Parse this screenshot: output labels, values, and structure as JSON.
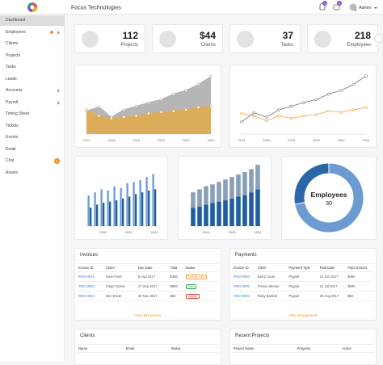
{
  "header": {
    "title": "Focus Technologies",
    "notifications": "3",
    "messages": "8",
    "user": "Admin"
  },
  "sidebar": {
    "items": [
      "Dashboard",
      "Employees",
      "Clients",
      "Projects",
      "Tasks",
      "Leads",
      "Accounts",
      "Payroll",
      "Timing Sheet",
      "Tickets",
      "Events",
      "Email",
      "Chat",
      "Assets"
    ],
    "chat_badge": "5"
  },
  "stats": [
    {
      "value": "112",
      "label": "Projects"
    },
    {
      "value": "$44",
      "label": "Clients"
    },
    {
      "value": "37",
      "label": "Tasks"
    },
    {
      "value": "218",
      "label": "Employees"
    }
  ],
  "chart_data": [
    {
      "type": "area",
      "x": [
        2014,
        2015,
        2016,
        2017,
        2018,
        2019,
        2020,
        2021,
        2022,
        2023,
        2024
      ],
      "xlim": [
        2014,
        2024
      ],
      "xticks": [
        2014,
        2016,
        2018,
        2020,
        2022,
        2024
      ],
      "ylim": [
        0,
        100
      ],
      "series": [
        {
          "color": "#a9a9a9",
          "values": [
            38,
            45,
            28,
            40,
            46,
            52,
            57,
            66,
            72,
            82,
            95
          ]
        },
        {
          "color": "#e2ac4a",
          "values": [
            40,
            30,
            26,
            28,
            30,
            34,
            36,
            38,
            40,
            44,
            46
          ]
        }
      ]
    },
    {
      "type": "line",
      "x": [
        2014,
        2015,
        2016,
        2017,
        2018,
        2019,
        2020,
        2021,
        2022,
        2023,
        2024
      ],
      "xlim": [
        2014,
        2024
      ],
      "xticks": [
        2014,
        2016,
        2018,
        2020,
        2022,
        2024
      ],
      "ylim": [
        0,
        100
      ],
      "series": [
        {
          "color": "#777777",
          "values": [
            20,
            35,
            28,
            40,
            46,
            52,
            57,
            66,
            72,
            82,
            96
          ]
        },
        {
          "color": "#f0a030",
          "values": [
            34,
            30,
            22,
            30,
            26,
            30,
            32,
            38,
            36,
            40,
            44
          ]
        }
      ]
    },
    {
      "type": "bar",
      "x": [
        2014,
        2015,
        2016,
        2017,
        2018,
        2019,
        2020,
        2021,
        2022,
        2023,
        2024
      ],
      "xlim": [
        2013.5,
        2024.5
      ],
      "xticks": [
        2016,
        2020,
        2024
      ],
      "ylim": [
        0,
        100
      ],
      "series": [
        {
          "color": "#6b9bd1",
          "values": [
            50,
            55,
            60,
            58,
            65,
            62,
            70,
            72,
            75,
            80,
            85
          ]
        },
        {
          "color": "#1f5f9e",
          "values": [
            30,
            35,
            38,
            40,
            42,
            45,
            48,
            52,
            55,
            58,
            60
          ]
        }
      ]
    },
    {
      "type": "stacked",
      "x": [
        2014,
        2015,
        2016,
        2017,
        2018,
        2019,
        2020,
        2021,
        2022,
        2023,
        2024
      ],
      "xlim": [
        2013.5,
        2024.5
      ],
      "xticks": [
        2016,
        2020,
        2024
      ],
      "ylim": [
        0,
        100
      ],
      "series": [
        {
          "color": "#1f5f9e",
          "values": [
            30,
            32,
            35,
            38,
            40,
            42,
            45,
            48,
            50,
            55,
            60
          ]
        },
        {
          "color": "#8aa0b8",
          "values": [
            25,
            28,
            30,
            30,
            32,
            34,
            35,
            36,
            38,
            38,
            40
          ]
        }
      ]
    },
    {
      "type": "donut",
      "label": "Employees",
      "center": 30,
      "values": [
        72,
        28
      ],
      "colors": [
        "#6b9bd1",
        "#2b66a8"
      ]
    }
  ],
  "invoices": {
    "title": "Invoices",
    "headers": [
      "Invoice ID",
      "Client",
      "Due Date",
      "Total",
      "Status"
    ],
    "rows": [
      [
        "#INV-0001",
        "Hazel Nutt",
        "8 Aug 2017",
        "$380",
        "Partially Paid"
      ],
      [
        "#INV-0002",
        "Paige Turner",
        "17 Sep 2017",
        "$500",
        "Paid"
      ],
      [
        "#INV-0003",
        "Ben Dover",
        "30 Nov 2017",
        "$60",
        "Unpaid"
      ]
    ],
    "link": "View all invoices"
  },
  "payments": {
    "title": "Payments",
    "headers": [
      "Invoice ID",
      "Client",
      "Payment Type",
      "Paid Date",
      "Paid Amount"
    ],
    "rows": [
      [
        "#INV-0004",
        "Barry Cuda",
        "Paypal",
        "11 Jun 2017",
        "$380"
      ],
      [
        "#INV-0005",
        "Tressa Wexler",
        "Paypal",
        "21 Jul 2017",
        "$500"
      ],
      [
        "#INV-0006",
        "Ruby Bartlett",
        "Paypal",
        "28 Aug 2017",
        "$60"
      ]
    ],
    "link": "View all payments"
  },
  "clients": {
    "title": "Clients",
    "headers": [
      "Name",
      "Email",
      "Status"
    ]
  },
  "projects": {
    "title": "Recent Projects",
    "headers": [
      "Project Name",
      "Progress",
      "Action"
    ]
  }
}
